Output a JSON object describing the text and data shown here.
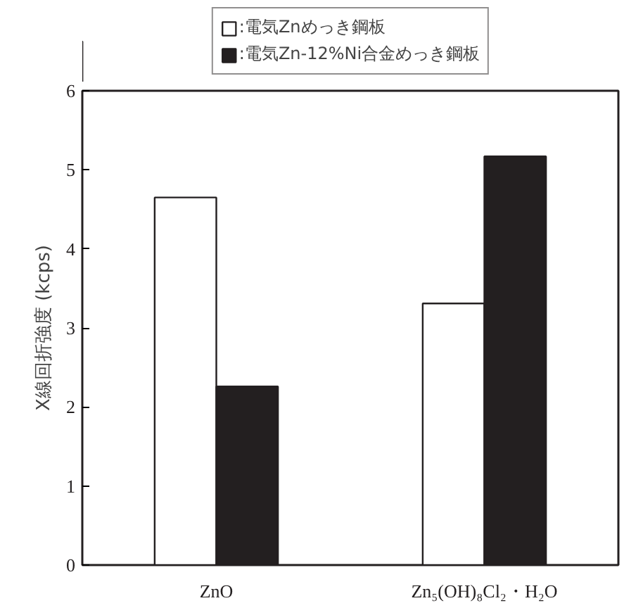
{
  "chart_data": {
    "type": "bar",
    "ylabel": "X線回折強度 (kcps)",
    "categories": [
      "ZnO",
      "Zn₅(OH)₈Cl₂・H₂O"
    ],
    "series": [
      {
        "name": ":電気Znめっき鋼板",
        "color": "#ffffff",
        "values": [
          4.65,
          3.31
        ]
      },
      {
        "name": ":電気Zn-12%Ni合金めっき鋼板",
        "color": "#231f20",
        "values": [
          2.26,
          5.17
        ]
      }
    ],
    "ylim": [
      0,
      6
    ],
    "yticks": [
      0,
      1,
      2,
      3,
      4,
      5,
      6
    ],
    "grid": false,
    "legend": "top"
  }
}
